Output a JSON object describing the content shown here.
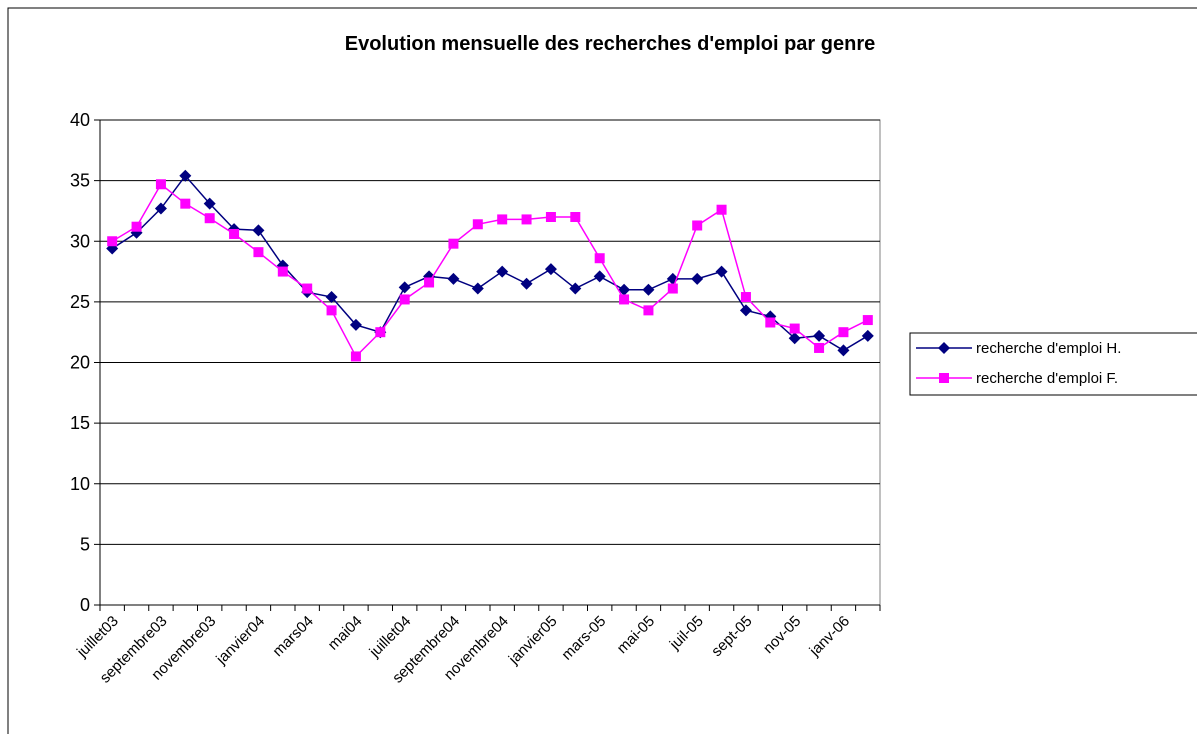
{
  "chart_data": {
    "type": "line",
    "title": "Evolution mensuelle des recherches d'emploi par genre",
    "categories": [
      "juillet03",
      null,
      "septembre03",
      null,
      "novembre03",
      null,
      "janvier04",
      null,
      "mars04",
      null,
      "mai04",
      null,
      "juillet04",
      null,
      "septembre04",
      null,
      "novembre04",
      null,
      "janvier05",
      null,
      "mars-05",
      null,
      "mai-05",
      null,
      "juil-05",
      null,
      "sept-05",
      null,
      "nov-05",
      null,
      "janv-06",
      null
    ],
    "series": [
      {
        "name": "recherche d'emploi H.",
        "color": "#000080",
        "marker": "diamond",
        "values": [
          29.4,
          30.7,
          32.7,
          35.4,
          33.1,
          31.0,
          30.9,
          28.0,
          25.8,
          25.4,
          23.1,
          22.5,
          26.2,
          27.1,
          26.9,
          26.1,
          27.5,
          26.5,
          27.7,
          26.1,
          27.1,
          26.0,
          26.0,
          26.9,
          26.9,
          27.5,
          24.3,
          23.8,
          22.0,
          22.2,
          21.0,
          22.2
        ]
      },
      {
        "name": "recherche d'emploi F.",
        "color": "#ff00ff",
        "marker": "square",
        "values": [
          30.0,
          31.2,
          34.7,
          33.1,
          31.9,
          30.6,
          29.1,
          27.5,
          26.1,
          24.3,
          20.5,
          22.5,
          25.2,
          26.6,
          29.8,
          31.4,
          31.8,
          31.8,
          32.0,
          32.0,
          28.6,
          25.2,
          24.3,
          26.1,
          31.3,
          32.6,
          25.4,
          23.3,
          22.8,
          21.2,
          22.5,
          23.5
        ]
      }
    ],
    "ylim": [
      0,
      40
    ],
    "yticks": [
      0,
      5,
      10,
      15,
      20,
      25,
      30,
      35,
      40
    ],
    "grid": true,
    "legend": "right"
  }
}
